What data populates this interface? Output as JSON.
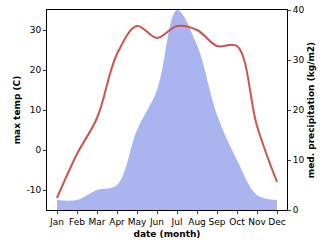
{
  "chart_data": {
    "type": "line",
    "categories": [
      "Jan",
      "Feb",
      "Mar",
      "Apr",
      "May",
      "Jun",
      "Jul",
      "Aug",
      "Sep",
      "Oct",
      "Nov",
      "Dec"
    ],
    "x_label": "date (month)",
    "y_label": "max temp (C)",
    "y2_label": "med. precipitation (kg/m2)",
    "ylim": [
      -15,
      35
    ],
    "yticks": [
      -10,
      0,
      10,
      20,
      30
    ],
    "y2lim": [
      0,
      40
    ],
    "y2ticks": [
      0,
      10,
      20,
      30,
      40
    ],
    "grid": false,
    "series": [
      {
        "name": "max temp",
        "type": "line",
        "color": "#cd5250",
        "values": [
          -12,
          -1,
          8,
          24,
          31,
          28,
          31,
          30,
          26,
          26,
          6,
          -8
        ]
      },
      {
        "name": "med. precipitation",
        "type": "area",
        "axis": "y2",
        "color": "#aab4ef",
        "values": [
          2,
          2,
          4,
          5,
          16,
          24,
          40,
          33,
          19,
          10,
          3,
          2
        ]
      }
    ]
  }
}
